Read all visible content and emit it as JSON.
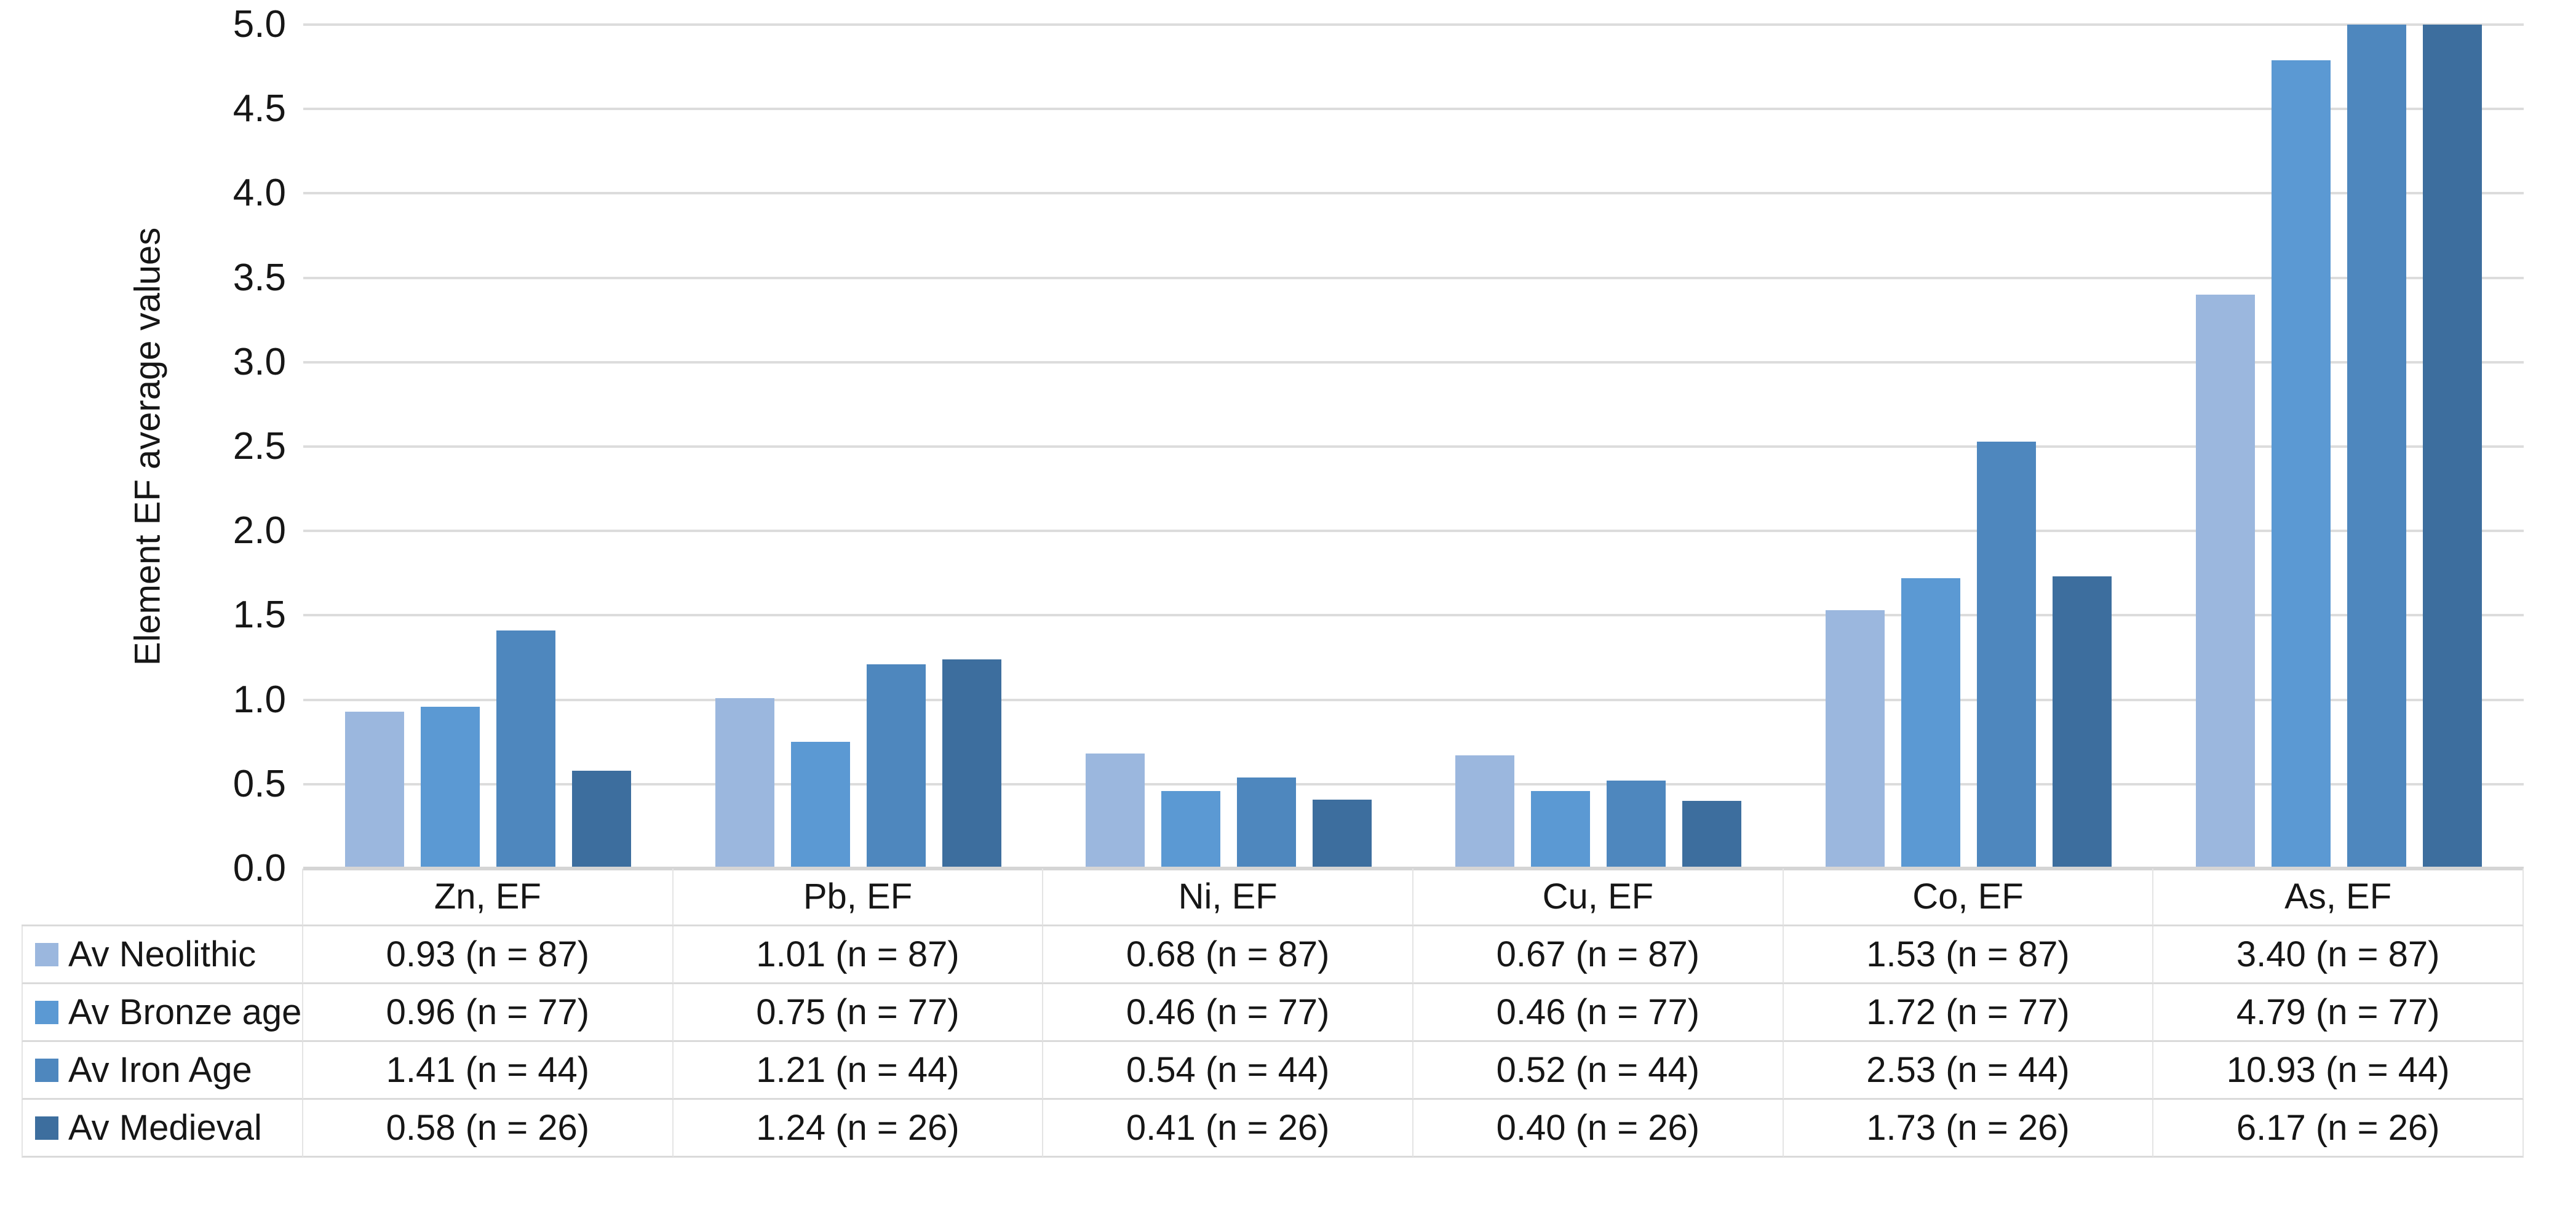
{
  "chart_data": {
    "type": "bar",
    "title": "",
    "xlabel": "",
    "ylabel": "Element EF average values",
    "ylim": [
      0,
      5
    ],
    "yticks": [
      "5.0",
      "4.5",
      "4.0",
      "3.5",
      "3.0",
      "2.5",
      "2.0",
      "1.5",
      "1.0",
      "0.5",
      "0.0"
    ],
    "grid": true,
    "legend_position": "table-left-column",
    "categories": [
      "Zn, EF",
      "Pb, EF",
      "Ni, EF",
      "Cu, EF",
      "Co, EF",
      "As, EF"
    ],
    "series": [
      {
        "name": "Av Neolithic",
        "color": "#9bb7de",
        "n": 87,
        "values": [
          0.93,
          1.01,
          0.68,
          0.67,
          1.53,
          3.4
        ]
      },
      {
        "name": "Av Bronze age",
        "color": "#5b99d3",
        "n": 77,
        "values": [
          0.96,
          0.75,
          0.46,
          0.46,
          1.72,
          4.79
        ]
      },
      {
        "name": "Av Iron Age",
        "color": "#4e87be",
        "n": 44,
        "values": [
          1.41,
          1.21,
          0.54,
          0.52,
          2.53,
          10.93
        ]
      },
      {
        "name": "Av Medieval",
        "color": "#3d6e9e",
        "n": 26,
        "values": [
          0.58,
          1.24,
          0.41,
          0.4,
          1.73,
          6.17
        ]
      }
    ],
    "colors": {
      "gridline": "#dcdcdc",
      "axis_line": "#d5d5d5",
      "table_border": "#dadada",
      "text": "#161616"
    },
    "note": "As, EF bars for Av Iron Age (10.93) and Av Medieval (6.17) exceed the axis maximum and are clipped at 5.0"
  },
  "table": {
    "corner_label": "",
    "column_headers": [
      "Zn, EF",
      "Pb, EF",
      "Ni, EF",
      "Cu, EF",
      "Co, EF",
      "As, EF"
    ],
    "row_labels": [
      "Av Neolithic",
      "Av Bronze age",
      "Av Iron Age",
      "Av Medieval"
    ],
    "cells": [
      [
        "0.93 (n = 87)",
        "1.01 (n = 87)",
        "0.68 (n = 87)",
        "0.67 (n = 87)",
        "1.53 (n = 87)",
        "3.40 (n = 87)"
      ],
      [
        "0.96 (n = 77)",
        "0.75 (n = 77)",
        "0.46 (n = 77)",
        "0.46 (n = 77)",
        "1.72 (n = 77)",
        "4.79 (n = 77)"
      ],
      [
        "1.41 (n = 44)",
        "1.21 (n = 44)",
        "0.54 (n = 44)",
        "0.52 (n = 44)",
        "2.53 (n = 44)",
        "10.93 (n = 44)"
      ],
      [
        "0.58 (n = 26)",
        "1.24 (n = 26)",
        "0.41 (n = 26)",
        "0.40 (n = 26)",
        "1.73 (n = 26)",
        "6.17 (n = 26)"
      ]
    ]
  }
}
